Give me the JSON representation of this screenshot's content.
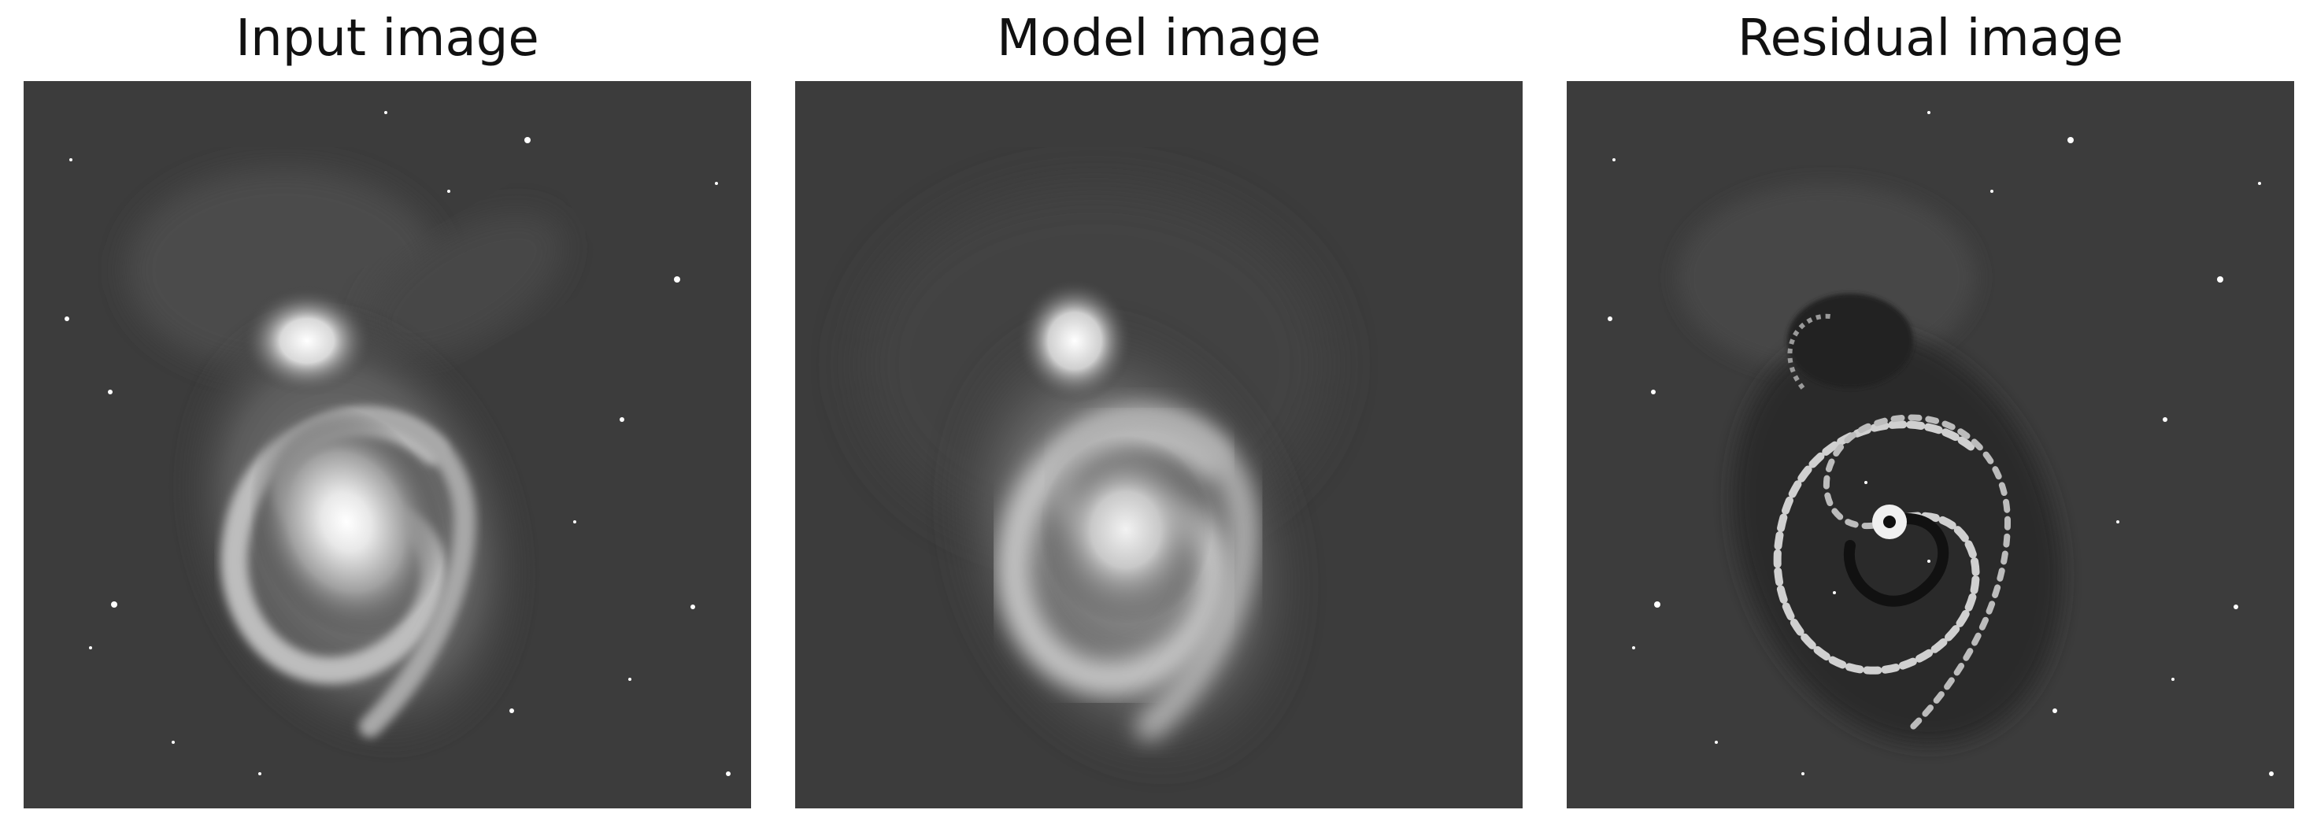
{
  "figure": {
    "panels": [
      {
        "title": "Input image"
      },
      {
        "title": "Model image"
      },
      {
        "title": "Residual image"
      }
    ]
  },
  "colors": {
    "sky_background": "#3c3c3c",
    "page_background": "#ffffff",
    "title_text": "#111111"
  }
}
